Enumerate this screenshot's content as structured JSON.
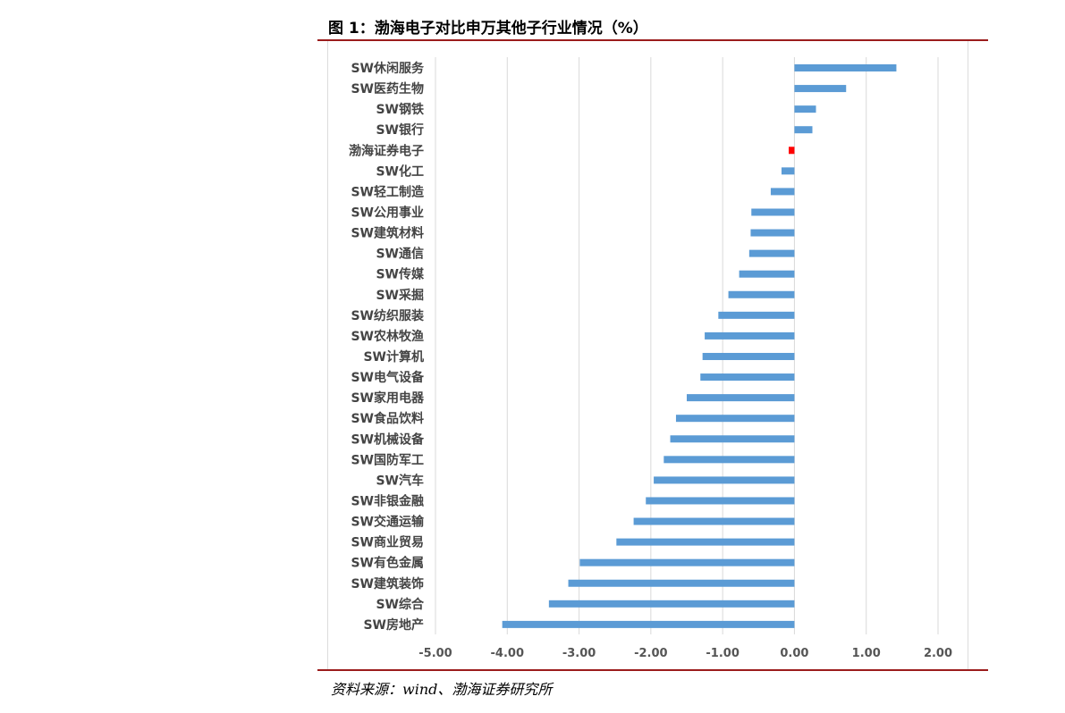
{
  "figure": {
    "title": "图 1：渤海电子对比申万其他子行业情况（%）",
    "source": "资料来源：wind、渤海证券研究所"
  },
  "chart_data": {
    "type": "bar",
    "orientation": "horizontal",
    "categories": [
      "SW休闲服务",
      "SW医药生物",
      "SW钢铁",
      "SW银行",
      "渤海证券电子",
      "SW化工",
      "SW轻工制造",
      "SW公用事业",
      "SW建筑材料",
      "SW通信",
      "SW传媒",
      "SW采掘",
      "SW纺织服装",
      "SW农林牧渔",
      "SW计算机",
      "SW电气设备",
      "SW家用电器",
      "SW食品饮料",
      "SW机械设备",
      "SW国防军工",
      "SW汽车",
      "SW非银金融",
      "SW交通运输",
      "SW商业贸易",
      "SW有色金属",
      "SW建筑装饰",
      "SW综合",
      "SW房地产"
    ],
    "values": [
      1.42,
      0.72,
      0.3,
      0.25,
      -0.08,
      -0.18,
      -0.33,
      -0.6,
      -0.61,
      -0.63,
      -0.77,
      -0.92,
      -1.06,
      -1.25,
      -1.28,
      -1.31,
      -1.5,
      -1.65,
      -1.73,
      -1.82,
      -1.96,
      -2.07,
      -2.24,
      -2.48,
      -2.99,
      -3.15,
      -3.42,
      -4.07
    ],
    "highlight_category": "渤海证券电子",
    "colors": {
      "bar": "#5b9bd5",
      "highlight": "#ff0000",
      "grid": "#d9d9d9"
    },
    "xlim": [
      -5,
      2
    ],
    "xticks": [
      -5,
      -4,
      -3,
      -2,
      -1,
      0,
      1,
      2
    ],
    "xtick_labels": [
      "-5.00",
      "-4.00",
      "-3.00",
      "-2.00",
      "-1.00",
      "0.00",
      "1.00",
      "2.00"
    ],
    "grid": "vertical",
    "legend": "none"
  }
}
